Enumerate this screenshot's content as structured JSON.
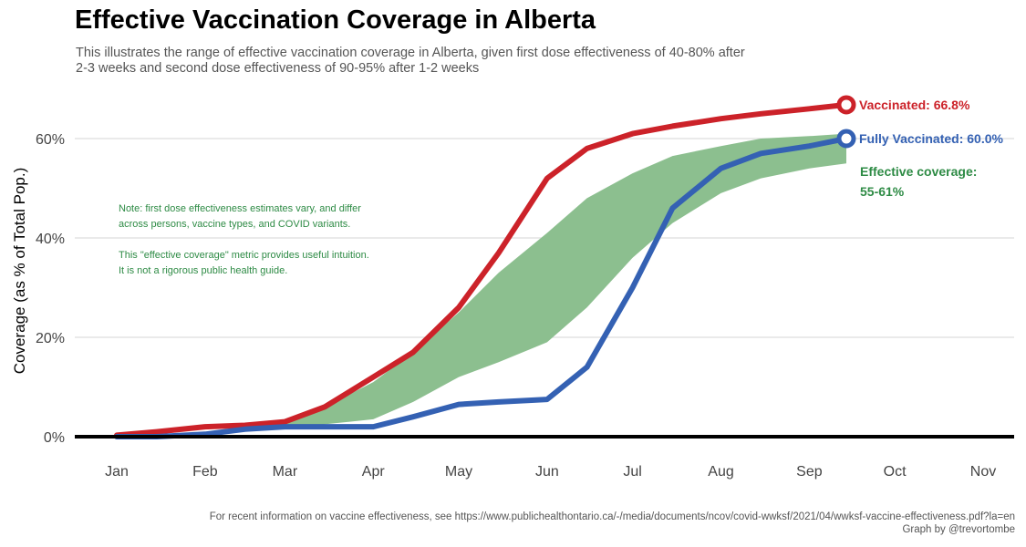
{
  "title": "Effective Vaccination Coverage in Alberta",
  "subtitle": "This illustrates the range of effective vaccination coverage in Alberta, given first dose effectiveness of 40-80% after 2-3 weeks and second dose effectiveness of 90-95% after 1-2 weeks",
  "caption": {
    "source": "For recent information on vaccine effectiveness, see https://www.publichealthontario.ca/-/media/documents/ncov/covid-wwksf/2021/04/wwksf-vaccine-effectiveness.pdf?la=en",
    "credit": "Graph by @trevortombe"
  },
  "colors": {
    "vaccinated": "#cc2229",
    "fully_vaccinated": "#3461b3",
    "effective": "#8cbf8f",
    "effective_text": "#2e8b45",
    "grid": "#dedede",
    "axis_text": "#444444"
  },
  "chart_data": {
    "type": "line",
    "ylabel": "Coverage (as % of Total Pop.)",
    "xlabel": "",
    "ylim": [
      0,
      70
    ],
    "grid": true,
    "x_ticks": [
      "Jan",
      "Feb",
      "Mar",
      "Apr",
      "May",
      "Jun",
      "Jul",
      "Aug",
      "Sep",
      "Oct",
      "Nov"
    ],
    "y_ticks": [
      "0%",
      "20%",
      "40%",
      "60%"
    ],
    "y_tick_values": [
      0,
      20,
      40,
      60
    ],
    "series": [
      {
        "name": "Vaccinated",
        "label": "Vaccinated: 66.8%",
        "end_value": 66.8,
        "x": [
          "2021-01-01",
          "2021-01-15",
          "2021-02-01",
          "2021-02-15",
          "2021-03-01",
          "2021-03-15",
          "2021-04-01",
          "2021-04-15",
          "2021-05-01",
          "2021-05-15",
          "2021-06-01",
          "2021-06-15",
          "2021-07-01",
          "2021-07-15",
          "2021-08-01",
          "2021-08-15",
          "2021-09-01",
          "2021-09-14"
        ],
        "values": [
          0.3,
          1.0,
          2.0,
          2.3,
          3.0,
          6.0,
          12.0,
          17.0,
          26.0,
          37.0,
          52.0,
          58.0,
          61.0,
          62.5,
          64.0,
          65.0,
          66.0,
          66.8
        ]
      },
      {
        "name": "Fully Vaccinated",
        "label": "Fully Vaccinated: 60.0%",
        "end_value": 60.0,
        "x": [
          "2021-01-01",
          "2021-01-15",
          "2021-02-01",
          "2021-02-15",
          "2021-03-01",
          "2021-03-15",
          "2021-04-01",
          "2021-04-15",
          "2021-05-01",
          "2021-05-15",
          "2021-06-01",
          "2021-06-15",
          "2021-07-01",
          "2021-07-15",
          "2021-08-01",
          "2021-08-15",
          "2021-09-01",
          "2021-09-14"
        ],
        "values": [
          0.0,
          0.0,
          0.5,
          1.5,
          2.0,
          2.0,
          2.0,
          4.0,
          6.5,
          7.0,
          7.5,
          14.0,
          30.0,
          46.0,
          54.0,
          57.0,
          58.5,
          60.0
        ]
      },
      {
        "name": "Effective coverage",
        "label_line1": "Effective coverage:",
        "label_line2": "55-61%",
        "type": "area",
        "x": [
          "2021-02-01",
          "2021-02-15",
          "2021-03-01",
          "2021-03-15",
          "2021-04-01",
          "2021-04-15",
          "2021-05-01",
          "2021-05-15",
          "2021-06-01",
          "2021-06-15",
          "2021-07-01",
          "2021-07-15",
          "2021-08-01",
          "2021-08-15",
          "2021-09-01",
          "2021-09-14"
        ],
        "low": [
          0.8,
          1.5,
          2.0,
          2.5,
          3.5,
          7.0,
          12.0,
          15.0,
          19.0,
          26.0,
          36.0,
          43.0,
          49.0,
          52.0,
          54.0,
          55.0
        ],
        "high": [
          0.9,
          1.8,
          3.0,
          6.0,
          11.0,
          17.0,
          25.0,
          33.0,
          41.0,
          48.0,
          53.0,
          56.5,
          58.5,
          60.0,
          60.5,
          61.0
        ]
      }
    ],
    "annotations": [
      "Note: first dose effectiveness estimates vary, and differ",
      "across persons, vaccine types, and COVID variants.",
      "This \"effective coverage\" metric provides useful intuition.",
      "It is not a rigorous public health guide."
    ]
  }
}
